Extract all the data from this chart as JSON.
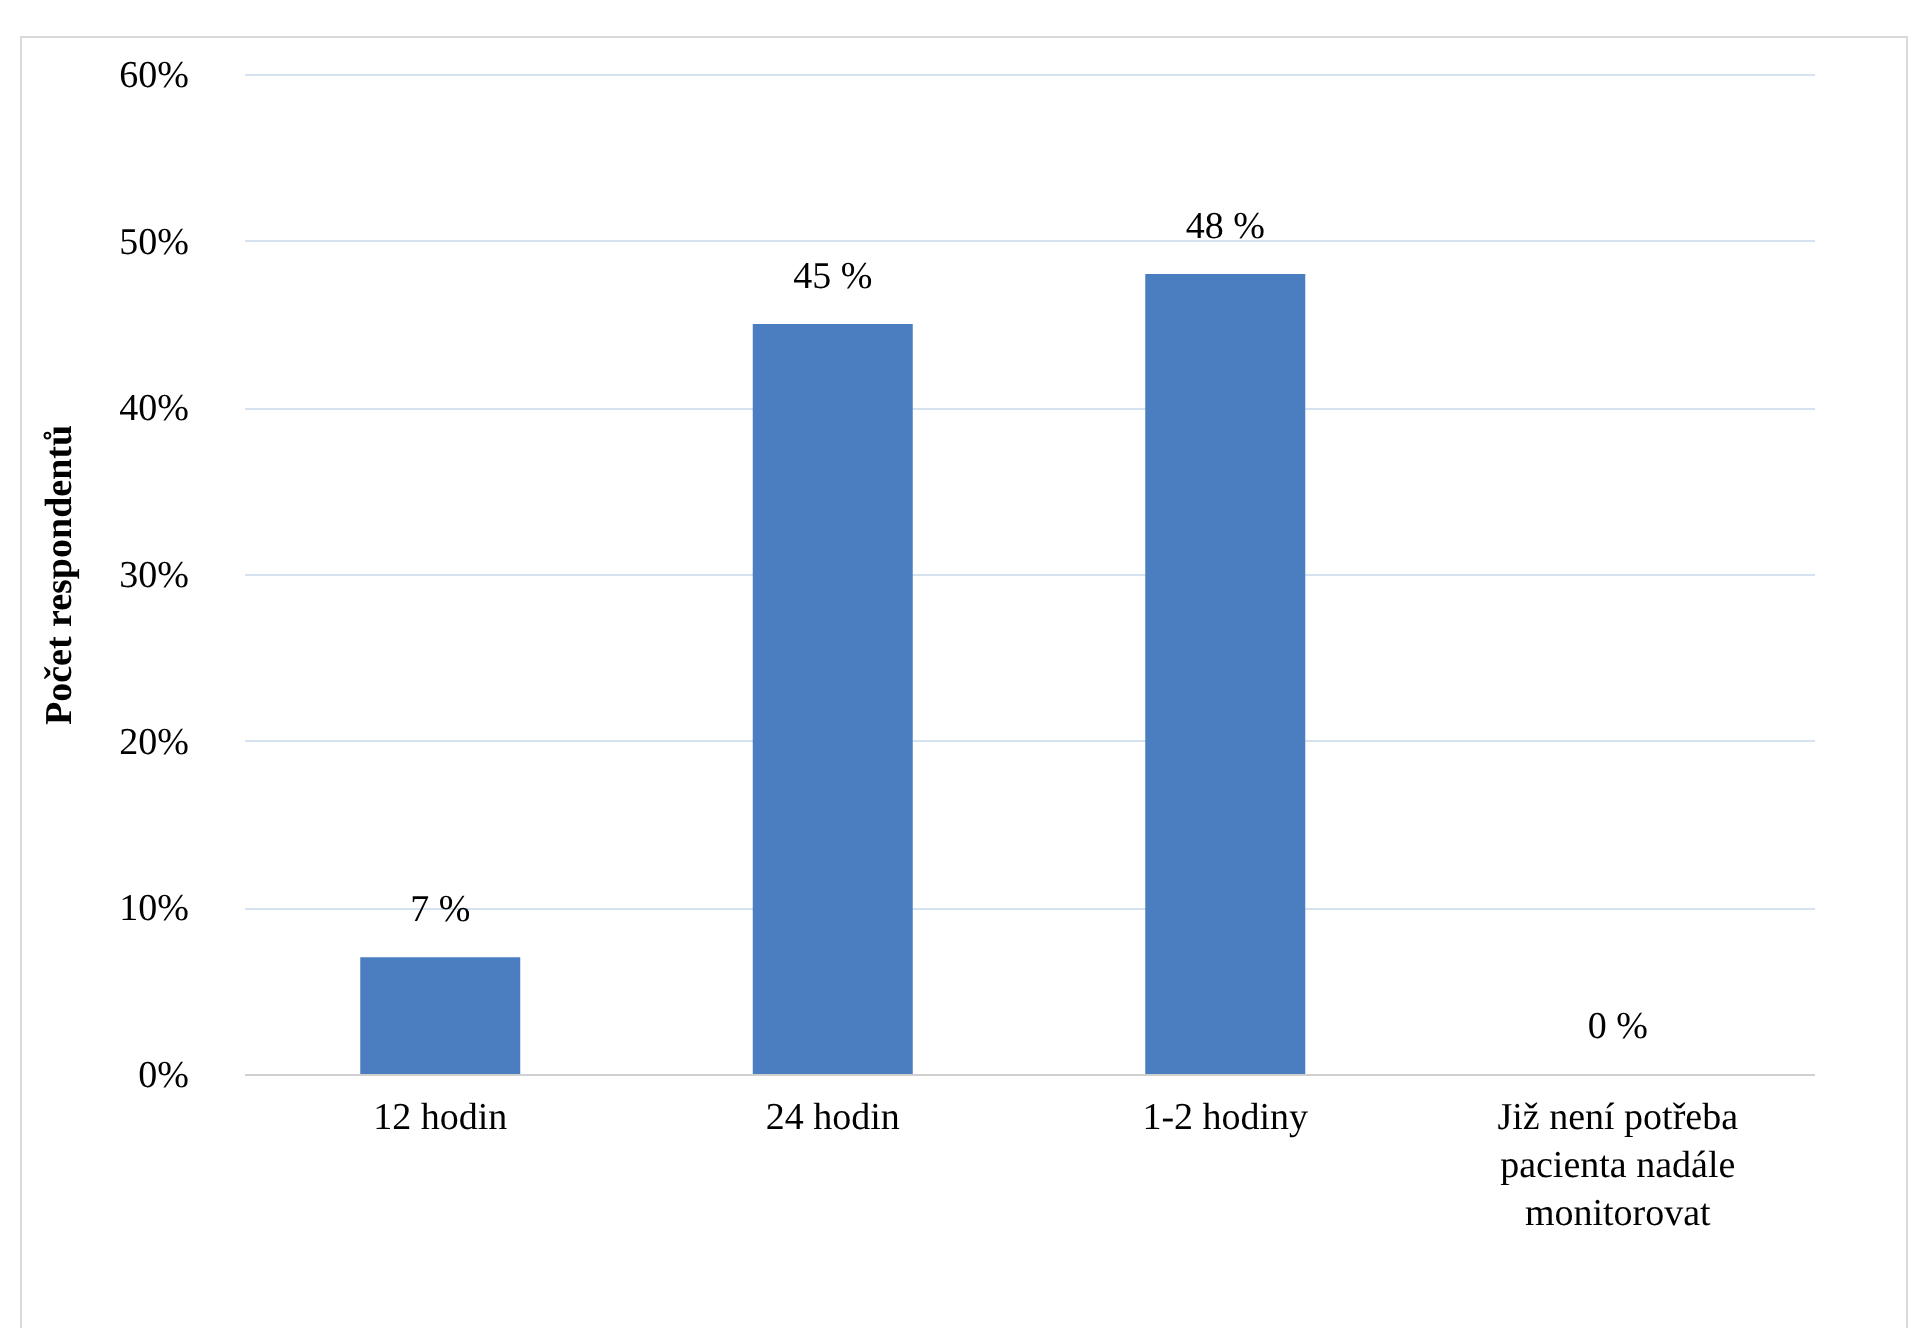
{
  "chart_data": {
    "type": "bar",
    "ylabel": "Počet respondentů",
    "categories": [
      "12 hodin",
      "24 hodin",
      "1-2 hodiny",
      "Již není potřeba pacienta nadále monitorovat"
    ],
    "values": [
      7,
      45,
      48,
      0
    ],
    "value_labels": [
      "7 %",
      "45 %",
      "48 %",
      "0 %"
    ],
    "color": "#4a7ec0",
    "ylim": [
      0,
      60
    ],
    "yticks": [
      {
        "value": 0,
        "label": "0%"
      },
      {
        "value": 10,
        "label": "10%"
      },
      {
        "value": 20,
        "label": "20%"
      },
      {
        "value": 30,
        "label": "30%"
      },
      {
        "value": 40,
        "label": "40%"
      },
      {
        "value": 50,
        "label": "50%"
      },
      {
        "value": 60,
        "label": "60%"
      }
    ],
    "grid": "y"
  }
}
